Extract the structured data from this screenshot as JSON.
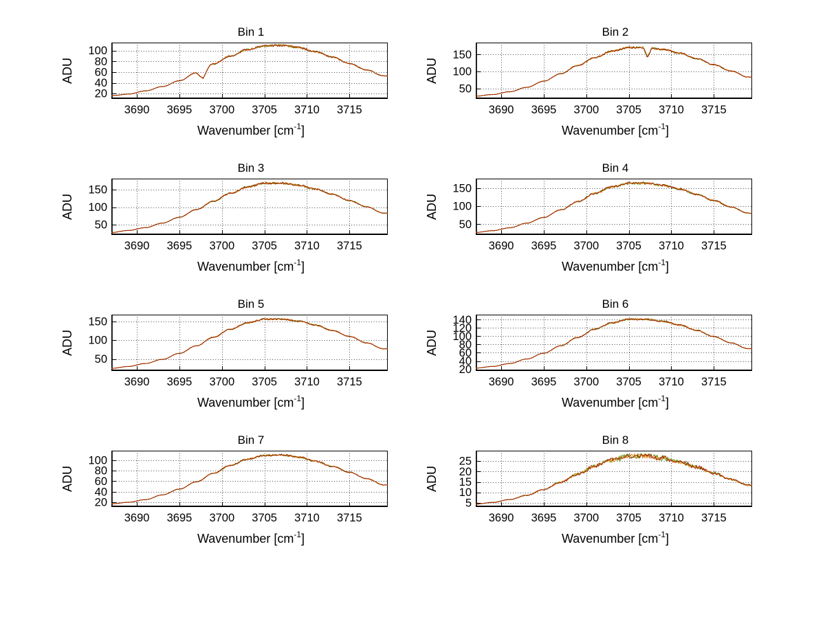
{
  "figure": {
    "background": "#ffffff"
  },
  "labels": {
    "ylabel": "ADU",
    "xlabel_base": "Wavenumber [cm",
    "xlabel_sup": "-1",
    "xlabel_end": "]"
  },
  "style": {
    "grid_color": "#404040",
    "axis_color": "#000000"
  },
  "chart_data": [
    {
      "type": "line",
      "title": "Bin 1",
      "xlabel": "Wavenumber [cm^-1]",
      "ylabel": "ADU",
      "grid": true,
      "legend": "none",
      "x": [
        3687,
        3689,
        3691,
        3693,
        3695,
        3697,
        3699,
        3701,
        3703,
        3705,
        3707,
        3709,
        3711,
        3713,
        3715,
        3717,
        3719
      ],
      "values": [
        16,
        19,
        25,
        33,
        44,
        59,
        75,
        90,
        102,
        109,
        110,
        106,
        98,
        88,
        76,
        64,
        53
      ],
      "series": [
        {
          "name": "trace-green",
          "color": "#3c9b00"
        },
        {
          "name": "trace-orange",
          "color": "#e08214"
        },
        {
          "name": "trace-dark-red",
          "color": "#a02000"
        }
      ],
      "xlim": [
        3687,
        3719.5
      ],
      "ylim": [
        10,
        115
      ],
      "xticks": [
        3690,
        3695,
        3700,
        3705,
        3710,
        3715
      ],
      "yticks": [
        20,
        40,
        60,
        80,
        100
      ],
      "dips": [
        {
          "x": 3697.8,
          "drop": 16,
          "width": 0.8
        }
      ],
      "noise_frac": 0.018
    },
    {
      "type": "line",
      "title": "Bin 2",
      "xlabel": "Wavenumber [cm^-1]",
      "ylabel": "ADU",
      "grid": true,
      "legend": "none",
      "x": [
        3687,
        3689,
        3691,
        3693,
        3695,
        3697,
        3699,
        3701,
        3703,
        3705,
        3707,
        3709,
        3711,
        3713,
        3715,
        3717,
        3719
      ],
      "values": [
        28,
        33,
        41,
        54,
        72,
        94,
        118,
        141,
        160,
        171,
        171,
        165,
        154,
        138,
        120,
        102,
        84
      ],
      "series": [
        {
          "name": "trace-green",
          "color": "#3c9b00"
        },
        {
          "name": "trace-orange",
          "color": "#e08214"
        },
        {
          "name": "trace-dark-red",
          "color": "#a02000"
        }
      ],
      "xlim": [
        3687,
        3719.5
      ],
      "ylim": [
        20,
        185
      ],
      "xticks": [
        3690,
        3695,
        3700,
        3705,
        3710,
        3715
      ],
      "yticks": [
        50,
        100,
        150
      ],
      "dips": [
        {
          "x": 3707.2,
          "drop": 30,
          "width": 0.5
        }
      ],
      "noise_frac": 0.016
    },
    {
      "type": "line",
      "title": "Bin 3",
      "xlabel": "Wavenumber [cm^-1]",
      "ylabel": "ADU",
      "grid": true,
      "legend": "none",
      "x": [
        3687,
        3689,
        3691,
        3693,
        3695,
        3697,
        3699,
        3701,
        3703,
        3705,
        3707,
        3709,
        3711,
        3713,
        3715,
        3717,
        3719
      ],
      "values": [
        27,
        33,
        41,
        54,
        71,
        93,
        117,
        140,
        158,
        169,
        169,
        163,
        152,
        137,
        119,
        101,
        83
      ],
      "series": [
        {
          "name": "trace-green",
          "color": "#3c9b00"
        },
        {
          "name": "trace-orange",
          "color": "#e08214"
        },
        {
          "name": "trace-dark-red",
          "color": "#a02000"
        }
      ],
      "xlim": [
        3687,
        3719.5
      ],
      "ylim": [
        20,
        182
      ],
      "xticks": [
        3690,
        3695,
        3700,
        3705,
        3710,
        3715
      ],
      "yticks": [
        50,
        100,
        150
      ],
      "dips": [],
      "noise_frac": 0.018
    },
    {
      "type": "line",
      "title": "Bin 4",
      "xlabel": "Wavenumber [cm^-1]",
      "ylabel": "ADU",
      "grid": true,
      "legend": "none",
      "x": [
        3687,
        3689,
        3691,
        3693,
        3695,
        3697,
        3699,
        3701,
        3703,
        3705,
        3707,
        3709,
        3711,
        3713,
        3715,
        3717,
        3719
      ],
      "values": [
        27,
        32,
        40,
        53,
        69,
        90,
        113,
        136,
        154,
        164,
        164,
        158,
        148,
        133,
        116,
        98,
        81
      ],
      "series": [
        {
          "name": "trace-green",
          "color": "#3c9b00"
        },
        {
          "name": "trace-orange",
          "color": "#e08214"
        },
        {
          "name": "trace-dark-red",
          "color": "#a02000"
        }
      ],
      "xlim": [
        3687,
        3719.5
      ],
      "ylim": [
        20,
        177
      ],
      "xticks": [
        3690,
        3695,
        3700,
        3705,
        3710,
        3715
      ],
      "yticks": [
        50,
        100,
        150
      ],
      "dips": [],
      "noise_frac": 0.02
    },
    {
      "type": "line",
      "title": "Bin 5",
      "xlabel": "Wavenumber [cm^-1]",
      "ylabel": "ADU",
      "grid": true,
      "legend": "none",
      "x": [
        3687,
        3689,
        3691,
        3693,
        3695,
        3697,
        3699,
        3701,
        3703,
        3705,
        3707,
        3709,
        3711,
        3713,
        3715,
        3717,
        3719
      ],
      "values": [
        25,
        30,
        38,
        49,
        65,
        85,
        108,
        129,
        146,
        156,
        156,
        151,
        140,
        126,
        110,
        93,
        77
      ],
      "series": [
        {
          "name": "trace-green",
          "color": "#3c9b00"
        },
        {
          "name": "trace-orange",
          "color": "#e08214"
        },
        {
          "name": "trace-dark-red",
          "color": "#a02000"
        }
      ],
      "xlim": [
        3687,
        3719.5
      ],
      "ylim": [
        18,
        168
      ],
      "xticks": [
        3690,
        3695,
        3700,
        3705,
        3710,
        3715
      ],
      "yticks": [
        50,
        100,
        150
      ],
      "dips": [],
      "noise_frac": 0.013
    },
    {
      "type": "line",
      "title": "Bin 6",
      "xlabel": "Wavenumber [cm^-1]",
      "ylabel": "ADU",
      "grid": true,
      "legend": "none",
      "x": [
        3687,
        3689,
        3691,
        3693,
        3695,
        3697,
        3699,
        3701,
        3703,
        3705,
        3707,
        3709,
        3711,
        3713,
        3715,
        3717,
        3719
      ],
      "values": [
        23,
        27,
        34,
        45,
        59,
        77,
        97,
        117,
        132,
        141,
        141,
        136,
        127,
        114,
        99,
        84,
        70
      ],
      "series": [
        {
          "name": "trace-green",
          "color": "#3c9b00"
        },
        {
          "name": "trace-orange",
          "color": "#e08214"
        },
        {
          "name": "trace-dark-red",
          "color": "#a02000"
        }
      ],
      "xlim": [
        3687,
        3719.5
      ],
      "ylim": [
        16,
        152
      ],
      "xticks": [
        3690,
        3695,
        3700,
        3705,
        3710,
        3715
      ],
      "yticks": [
        20,
        40,
        60,
        80,
        100,
        120,
        140
      ],
      "dips": [],
      "noise_frac": 0.014
    },
    {
      "type": "line",
      "title": "Bin 7",
      "xlabel": "Wavenumber [cm^-1]",
      "ylabel": "ADU",
      "grid": true,
      "legend": "none",
      "x": [
        3687,
        3689,
        3691,
        3693,
        3695,
        3697,
        3699,
        3701,
        3703,
        3705,
        3707,
        3709,
        3711,
        3713,
        3715,
        3717,
        3719
      ],
      "values": [
        17,
        20,
        25,
        34,
        45,
        59,
        75,
        90,
        102,
        109,
        110,
        106,
        98,
        88,
        77,
        65,
        53
      ],
      "series": [
        {
          "name": "trace-green",
          "color": "#3c9b00"
        },
        {
          "name": "trace-orange",
          "color": "#e08214"
        },
        {
          "name": "trace-dark-red",
          "color": "#a02000"
        }
      ],
      "xlim": [
        3687,
        3719.5
      ],
      "ylim": [
        11,
        118
      ],
      "xticks": [
        3690,
        3695,
        3700,
        3705,
        3710,
        3715
      ],
      "yticks": [
        20,
        40,
        60,
        80,
        100
      ],
      "dips": [],
      "noise_frac": 0.016
    },
    {
      "type": "line",
      "title": "Bin 8",
      "xlabel": "Wavenumber [cm^-1]",
      "ylabel": "ADU",
      "grid": true,
      "legend": "none",
      "x": [
        3687,
        3689,
        3691,
        3693,
        3695,
        3697,
        3699,
        3701,
        3703,
        3705,
        3707,
        3709,
        3711,
        3713,
        3715,
        3717,
        3719
      ],
      "values": [
        4.4,
        5.2,
        6.6,
        8.6,
        11.4,
        14.9,
        18.8,
        22.6,
        25.6,
        27.3,
        27.4,
        26.4,
        24.6,
        22.1,
        19.2,
        16.3,
        13.5
      ],
      "series": [
        {
          "name": "trace-green",
          "color": "#3c9b00"
        },
        {
          "name": "trace-orange",
          "color": "#e08214"
        },
        {
          "name": "trace-dark-red",
          "color": "#a02000"
        }
      ],
      "xlim": [
        3687,
        3719.5
      ],
      "ylim": [
        3,
        30
      ],
      "xticks": [
        3690,
        3695,
        3700,
        3705,
        3710,
        3715
      ],
      "yticks": [
        5,
        10,
        15,
        20,
        25
      ],
      "dips": [],
      "noise_frac": 0.045
    }
  ]
}
